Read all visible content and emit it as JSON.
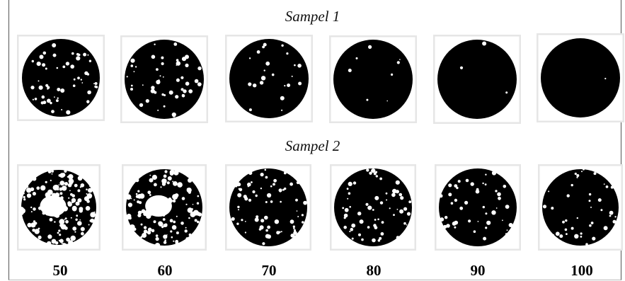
{
  "sample1_title": "Sampel 1",
  "sample2_title": "Sampel 2",
  "labels": [
    "50",
    "60",
    "70",
    "80",
    "90",
    "100"
  ],
  "colors": {
    "disc": "#000000",
    "holes": "#ffffff",
    "panel_border": "#e6e6e6"
  }
}
